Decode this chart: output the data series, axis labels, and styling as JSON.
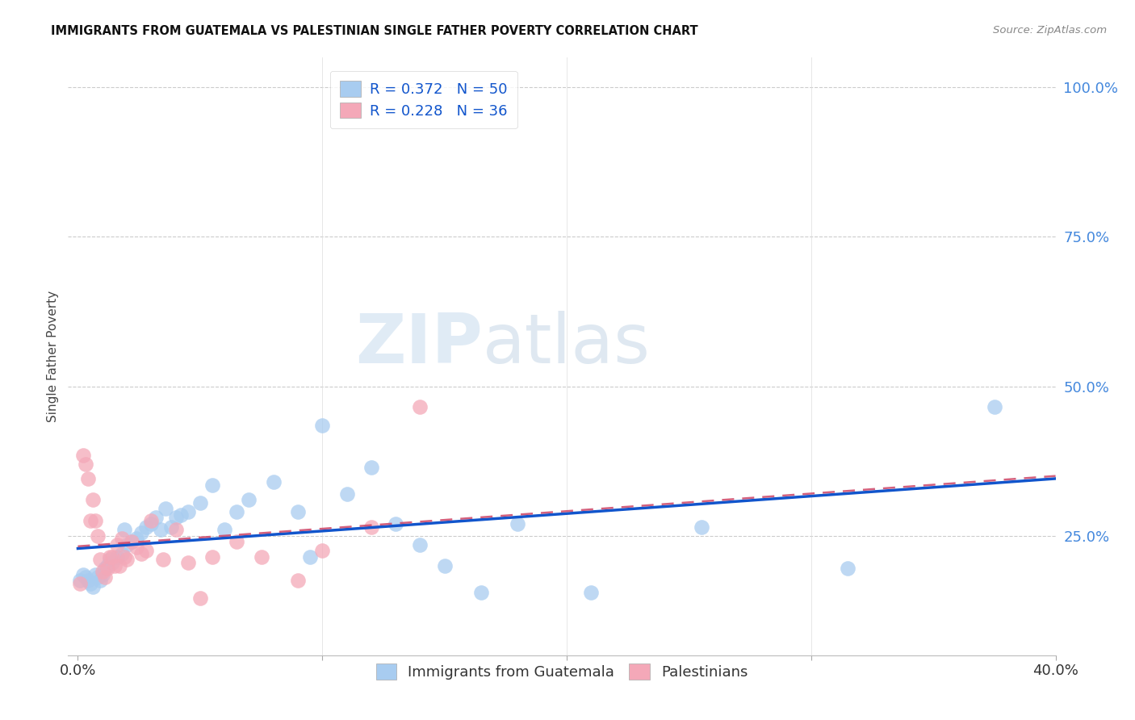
{
  "title": "IMMIGRANTS FROM GUATEMALA VS PALESTINIAN SINGLE FATHER POVERTY CORRELATION CHART",
  "source": "Source: ZipAtlas.com",
  "ylabel": "Single Father Poverty",
  "legend_label_blue": "R = 0.372   N = 50",
  "legend_label_pink": "R = 0.228   N = 36",
  "legend_bottom_blue": "Immigrants from Guatemala",
  "legend_bottom_pink": "Palestinians",
  "color_blue": "#A8CCF0",
  "color_pink": "#F4A8B8",
  "color_trendline_blue": "#1155CC",
  "color_trendline_pink": "#CC4466",
  "watermark_zip": "ZIP",
  "watermark_atlas": "atlas",
  "blue_x": [
    0.001,
    0.002,
    0.003,
    0.004,
    0.005,
    0.006,
    0.007,
    0.008,
    0.009,
    0.01,
    0.011,
    0.012,
    0.013,
    0.014,
    0.016,
    0.018,
    0.019,
    0.02,
    0.022,
    0.024,
    0.026,
    0.028,
    0.03,
    0.032,
    0.034,
    0.036,
    0.038,
    0.04,
    0.042,
    0.045,
    0.05,
    0.055,
    0.06,
    0.065,
    0.07,
    0.08,
    0.09,
    0.095,
    0.1,
    0.11,
    0.12,
    0.13,
    0.14,
    0.15,
    0.165,
    0.18,
    0.21,
    0.255,
    0.315,
    0.375
  ],
  "blue_y": [
    0.175,
    0.185,
    0.18,
    0.175,
    0.17,
    0.165,
    0.185,
    0.18,
    0.175,
    0.185,
    0.195,
    0.2,
    0.21,
    0.205,
    0.215,
    0.22,
    0.26,
    0.235,
    0.24,
    0.245,
    0.255,
    0.265,
    0.27,
    0.28,
    0.26,
    0.295,
    0.265,
    0.28,
    0.285,
    0.29,
    0.305,
    0.335,
    0.26,
    0.29,
    0.31,
    0.34,
    0.29,
    0.215,
    0.435,
    0.32,
    0.365,
    0.27,
    0.235,
    0.2,
    0.155,
    0.27,
    0.155,
    0.265,
    0.195,
    0.465
  ],
  "pink_x": [
    0.001,
    0.002,
    0.003,
    0.004,
    0.005,
    0.006,
    0.007,
    0.008,
    0.009,
    0.01,
    0.011,
    0.012,
    0.013,
    0.014,
    0.015,
    0.016,
    0.017,
    0.018,
    0.019,
    0.02,
    0.022,
    0.024,
    0.026,
    0.028,
    0.03,
    0.035,
    0.04,
    0.045,
    0.05,
    0.055,
    0.065,
    0.075,
    0.09,
    0.1,
    0.12,
    0.14
  ],
  "pink_y": [
    0.17,
    0.385,
    0.37,
    0.345,
    0.275,
    0.31,
    0.275,
    0.25,
    0.21,
    0.19,
    0.18,
    0.195,
    0.215,
    0.215,
    0.2,
    0.235,
    0.2,
    0.245,
    0.215,
    0.21,
    0.24,
    0.23,
    0.22,
    0.225,
    0.275,
    0.21,
    0.26,
    0.205,
    0.145,
    0.215,
    0.24,
    0.215,
    0.175,
    0.225,
    0.265,
    0.465
  ],
  "xlim": [
    -0.004,
    0.4
  ],
  "ylim": [
    0.05,
    1.05
  ],
  "ytick_vals": [
    0.25,
    0.5,
    0.75,
    1.0
  ],
  "ytick_labels": [
    "25.0%",
    "50.0%",
    "75.0%",
    "100.0%"
  ],
  "xtick_vals": [
    0.0,
    0.1,
    0.2,
    0.3,
    0.4
  ],
  "xtick_labels": [
    "0.0%",
    "",
    "",
    "",
    "40.0%"
  ]
}
